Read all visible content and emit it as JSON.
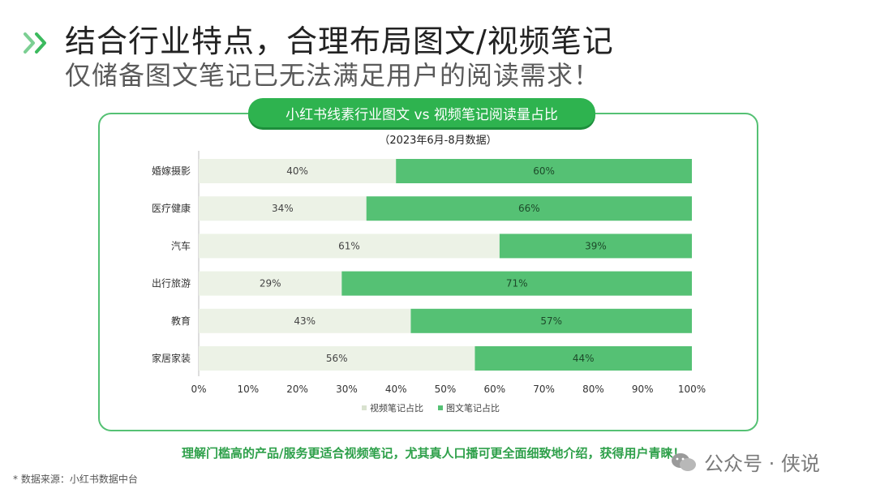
{
  "header": {
    "title": "结合行业特点，合理布局图文/视频笔记",
    "subtitle": "仅储备图文笔记已无法满足用户的阅读需求！"
  },
  "chart_data": {
    "type": "bar",
    "orientation": "horizontal",
    "stacked": true,
    "title": "小红书线素行业图文 vs 视频笔记阅读量占比",
    "subtitle": "（2023年6月-8月数据）",
    "categories": [
      "婚嫁摄影",
      "医疗健康",
      "汽车",
      "出行旅游",
      "教育",
      "家居家装"
    ],
    "series": [
      {
        "name": "视频笔记占比",
        "values": [
          40,
          34,
          61,
          29,
          43,
          56
        ],
        "color": "#ecf2e6"
      },
      {
        "name": "图文笔记占比",
        "values": [
          60,
          66,
          39,
          71,
          57,
          44
        ],
        "color": "#55c174"
      }
    ],
    "xlim": [
      0,
      100
    ],
    "xticks": [
      "0%",
      "10%",
      "20%",
      "30%",
      "40%",
      "50%",
      "60%",
      "70%",
      "80%",
      "90%",
      "100%"
    ],
    "grid": false,
    "legend": "bottom",
    "value_format": "percent"
  },
  "footer": {
    "tagline": "理解门槛高的产品/服务更适合视频笔记，尤其真人口播可更全面细致地介绍，获得用户青睐！",
    "source": "* 数据来源：小红书数据中台",
    "watermark": "公众号 · 侠说"
  }
}
